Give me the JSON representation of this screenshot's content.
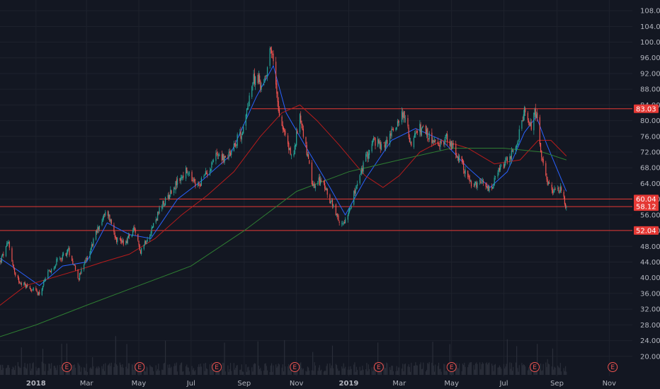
{
  "chart_data": {
    "type": "candlestick",
    "title": "",
    "xlabel": "",
    "ylabel": "",
    "ylim": [
      16,
      110
    ],
    "y_ticks": [
      20,
      24,
      28,
      32,
      36,
      40,
      44,
      48,
      52,
      56,
      60,
      64,
      68,
      72,
      76,
      80,
      84,
      88,
      92,
      96,
      100,
      104,
      108
    ],
    "y_tick_labels": [
      "20.00",
      "24.00",
      "28.00",
      "32.00",
      "36.00",
      "40.00",
      "44.00",
      "48.00",
      "52.00",
      "56.00",
      "60.00",
      "64.00",
      "68.00",
      "72.00",
      "76.00",
      "80.00",
      "84.00",
      "88.00",
      "92.00",
      "96.00",
      "100.00",
      "104.00",
      "108.00"
    ],
    "x_range": [
      "2017-11-20",
      "2019-11-28"
    ],
    "x_ticks": [
      {
        "date": "2018-01-01",
        "label": "2018",
        "bold": true
      },
      {
        "date": "2018-03-01",
        "label": "Mar",
        "bold": false
      },
      {
        "date": "2018-05-01",
        "label": "May",
        "bold": false
      },
      {
        "date": "2018-07-01",
        "label": "Jul",
        "bold": false
      },
      {
        "date": "2018-09-01",
        "label": "Sep",
        "bold": false
      },
      {
        "date": "2018-11-01",
        "label": "Nov",
        "bold": false
      },
      {
        "date": "2019-01-01",
        "label": "2019",
        "bold": true
      },
      {
        "date": "2019-03-01",
        "label": "Mar",
        "bold": false
      },
      {
        "date": "2019-05-01",
        "label": "May",
        "bold": false
      },
      {
        "date": "2019-07-01",
        "label": "Jul",
        "bold": false
      },
      {
        "date": "2019-09-01",
        "label": "Sep",
        "bold": false
      },
      {
        "date": "2019-11-01",
        "label": "Nov",
        "bold": false
      }
    ],
    "horizontal_levels": [
      {
        "value": 83.03,
        "label": "83.03",
        "start": "2018-09-10"
      },
      {
        "value": 60.04,
        "label": "60.04",
        "start": "2018-05-25"
      },
      {
        "value": 58.12,
        "label": "58.12",
        "start": "2017-11-20"
      },
      {
        "value": 52.04,
        "label": "52.04",
        "start": "2017-11-20"
      }
    ],
    "earnings_markers": {
      "label": "E",
      "dates": [
        "2018-02-06",
        "2018-05-02",
        "2018-07-31",
        "2018-10-30",
        "2019-02-05",
        "2019-05-01",
        "2019-08-06",
        "2019-11-05"
      ]
    },
    "price_path": [
      [
        "2017-11-20",
        44
      ],
      [
        "2017-11-30",
        49
      ],
      [
        "2017-12-08",
        40
      ],
      [
        "2017-12-20",
        38
      ],
      [
        "2018-01-05",
        36
      ],
      [
        "2018-01-15",
        41
      ],
      [
        "2018-01-25",
        44
      ],
      [
        "2018-02-08",
        47
      ],
      [
        "2018-02-20",
        40
      ],
      [
        "2018-03-05",
        47
      ],
      [
        "2018-03-15",
        53
      ],
      [
        "2018-03-25",
        57
      ],
      [
        "2018-04-05",
        50
      ],
      [
        "2018-04-15",
        49
      ],
      [
        "2018-04-25",
        52
      ],
      [
        "2018-05-03",
        47
      ],
      [
        "2018-05-15",
        52
      ],
      [
        "2018-05-25",
        57
      ],
      [
        "2018-06-10",
        63
      ],
      [
        "2018-06-25",
        67
      ],
      [
        "2018-07-08",
        63
      ],
      [
        "2018-07-20",
        67
      ],
      [
        "2018-08-01",
        72
      ],
      [
        "2018-08-10",
        70
      ],
      [
        "2018-08-20",
        74
      ],
      [
        "2018-09-01",
        78
      ],
      [
        "2018-09-08",
        88
      ],
      [
        "2018-09-15",
        92
      ],
      [
        "2018-09-22",
        88
      ],
      [
        "2018-09-28",
        94
      ],
      [
        "2018-10-02",
        99
      ],
      [
        "2018-10-06",
        93
      ],
      [
        "2018-10-12",
        82
      ],
      [
        "2018-10-20",
        75
      ],
      [
        "2018-10-28",
        70
      ],
      [
        "2018-11-05",
        82
      ],
      [
        "2018-11-12",
        73
      ],
      [
        "2018-11-20",
        63
      ],
      [
        "2018-11-30",
        65
      ],
      [
        "2018-12-10",
        60
      ],
      [
        "2018-12-22",
        53
      ],
      [
        "2018-12-28",
        55
      ],
      [
        "2019-01-10",
        63
      ],
      [
        "2019-01-20",
        70
      ],
      [
        "2019-01-30",
        75
      ],
      [
        "2019-02-10",
        73
      ],
      [
        "2019-02-25",
        79
      ],
      [
        "2019-03-05",
        82
      ],
      [
        "2019-03-15",
        74
      ],
      [
        "2019-03-25",
        78
      ],
      [
        "2019-04-05",
        76
      ],
      [
        "2019-04-15",
        73
      ],
      [
        "2019-04-25",
        76
      ],
      [
        "2019-05-05",
        72
      ],
      [
        "2019-05-15",
        68
      ],
      [
        "2019-05-25",
        63
      ],
      [
        "2019-06-05",
        64
      ],
      [
        "2019-06-15",
        62
      ],
      [
        "2019-06-25",
        67
      ],
      [
        "2019-07-05",
        70
      ],
      [
        "2019-07-15",
        73
      ],
      [
        "2019-07-25",
        82
      ],
      [
        "2019-08-02",
        79
      ],
      [
        "2019-08-08",
        83
      ],
      [
        "2019-08-14",
        70
      ],
      [
        "2019-08-20",
        64
      ],
      [
        "2019-08-28",
        62
      ],
      [
        "2019-09-05",
        63
      ],
      [
        "2019-09-12",
        58
      ]
    ],
    "moving_averages": [
      {
        "color": "#2962ff",
        "values": [
          [
            "2017-11-20",
            45
          ],
          [
            "2017-12-10",
            42
          ],
          [
            "2018-01-05",
            38
          ],
          [
            "2018-02-01",
            43
          ],
          [
            "2018-03-01",
            44
          ],
          [
            "2018-03-25",
            54
          ],
          [
            "2018-04-20",
            51
          ],
          [
            "2018-05-15",
            50
          ],
          [
            "2018-06-15",
            60
          ],
          [
            "2018-07-15",
            65
          ],
          [
            "2018-08-15",
            71
          ],
          [
            "2018-09-15",
            86
          ],
          [
            "2018-10-05",
            94
          ],
          [
            "2018-10-20",
            82
          ],
          [
            "2018-11-10",
            74
          ],
          [
            "2018-12-10",
            63
          ],
          [
            "2018-12-28",
            56
          ],
          [
            "2019-01-20",
            65
          ],
          [
            "2019-02-20",
            75
          ],
          [
            "2019-03-20",
            78
          ],
          [
            "2019-04-20",
            75
          ],
          [
            "2019-05-20",
            68
          ],
          [
            "2019-06-15",
            63
          ],
          [
            "2019-07-05",
            67
          ],
          [
            "2019-07-25",
            77
          ],
          [
            "2019-08-08",
            81
          ],
          [
            "2019-08-20",
            74
          ],
          [
            "2019-09-12",
            62
          ]
        ]
      },
      {
        "color": "#b71c1c",
        "values": [
          [
            "2017-11-20",
            33
          ],
          [
            "2017-12-20",
            38
          ],
          [
            "2018-01-20",
            40
          ],
          [
            "2018-02-20",
            42
          ],
          [
            "2018-03-20",
            44
          ],
          [
            "2018-04-20",
            46
          ],
          [
            "2018-05-20",
            50
          ],
          [
            "2018-06-20",
            56
          ],
          [
            "2018-07-20",
            61
          ],
          [
            "2018-08-20",
            67
          ],
          [
            "2018-09-20",
            76
          ],
          [
            "2018-10-15",
            82
          ],
          [
            "2018-11-05",
            84
          ],
          [
            "2018-11-25",
            80
          ],
          [
            "2018-12-20",
            74
          ],
          [
            "2019-01-20",
            66
          ],
          [
            "2019-02-10",
            63
          ],
          [
            "2019-03-01",
            66
          ],
          [
            "2019-03-25",
            72
          ],
          [
            "2019-04-20",
            75
          ],
          [
            "2019-05-20",
            73
          ],
          [
            "2019-06-20",
            69
          ],
          [
            "2019-07-20",
            70
          ],
          [
            "2019-08-10",
            75
          ],
          [
            "2019-08-25",
            75
          ],
          [
            "2019-09-12",
            71
          ]
        ]
      },
      {
        "color": "#2e7d32",
        "values": [
          [
            "2017-11-20",
            25
          ],
          [
            "2018-01-01",
            28
          ],
          [
            "2018-03-01",
            33
          ],
          [
            "2018-05-01",
            38
          ],
          [
            "2018-07-01",
            43
          ],
          [
            "2018-09-01",
            52
          ],
          [
            "2018-11-01",
            62
          ],
          [
            "2019-01-01",
            67
          ],
          [
            "2019-03-01",
            70
          ],
          [
            "2019-05-01",
            73
          ],
          [
            "2019-07-01",
            73
          ],
          [
            "2019-08-15",
            72
          ],
          [
            "2019-09-12",
            70
          ]
        ]
      }
    ],
    "volume_note": "volume bars shown in panel bottom"
  }
}
